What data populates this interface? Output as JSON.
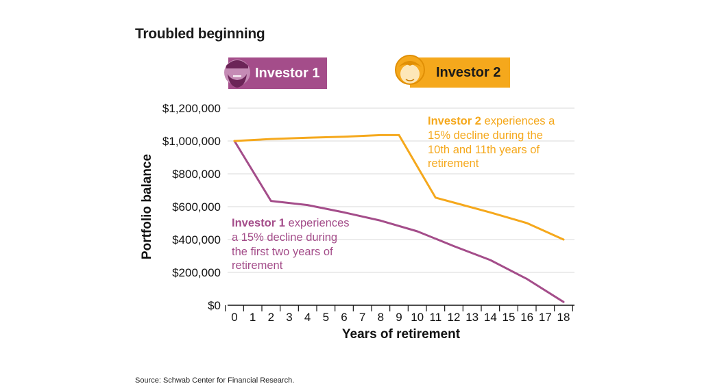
{
  "title": "Troubled beginning",
  "source": "Source: Schwab Center for Financial Research.",
  "colors": {
    "investor1": "#a44d8a",
    "investor2": "#f5a81c",
    "grid": "#d9d9d9",
    "axis": "#111111"
  },
  "badges": [
    {
      "label": "Investor 1",
      "icon": "man-face-icon"
    },
    {
      "label": "Investor 2",
      "icon": "woman-face-icon"
    }
  ],
  "annotations": {
    "investor1": {
      "bold": "Investor 1",
      "lines": [
        " experiences",
        "a 15% decline during",
        "the first two years of",
        "retirement"
      ]
    },
    "investor2": {
      "bold": "Investor 2",
      "lines": [
        " experiences a",
        "15% decline during the",
        "10th and 11th years of",
        "retirement"
      ]
    }
  },
  "chart_data": {
    "type": "line",
    "xlabel": "Years of retirement",
    "ylabel": "Portfolio balance",
    "x_ticks": [
      0,
      1,
      2,
      3,
      4,
      5,
      6,
      7,
      8,
      9,
      10,
      11,
      12,
      13,
      14,
      15,
      16,
      17,
      18
    ],
    "y_ticks": [
      "$0",
      "$200,000",
      "$400,000",
      "$600,000",
      "$800,000",
      "$1,000,000",
      "$1,200,000"
    ],
    "ylim": [
      0,
      1200000
    ],
    "xlim": [
      0,
      18
    ],
    "grid": "horizontal",
    "series": [
      {
        "name": "Investor 1",
        "points": [
          [
            0,
            1000000
          ],
          [
            2,
            635000
          ],
          [
            4,
            610000
          ],
          [
            6,
            565000
          ],
          [
            8,
            515000
          ],
          [
            10,
            450000
          ],
          [
            12,
            360000
          ],
          [
            14,
            275000
          ],
          [
            16,
            160000
          ],
          [
            18,
            20000
          ]
        ]
      },
      {
        "name": "Investor 2",
        "points": [
          [
            0,
            1000000
          ],
          [
            2,
            1012000
          ],
          [
            4,
            1020000
          ],
          [
            6,
            1026000
          ],
          [
            8,
            1036000
          ],
          [
            9,
            1036000
          ],
          [
            11,
            655000
          ],
          [
            12,
            625000
          ],
          [
            14,
            565000
          ],
          [
            16,
            500000
          ],
          [
            18,
            400000
          ]
        ]
      }
    ]
  }
}
